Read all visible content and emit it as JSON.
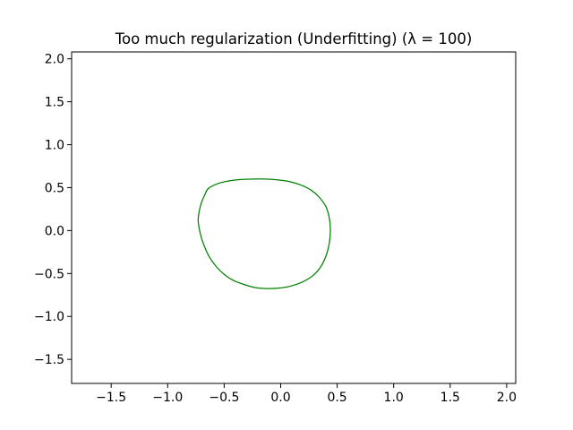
{
  "chart_data": {
    "type": "line",
    "title": "Too much regularization (Underfitting) (λ = 100)",
    "xlabel": "",
    "ylabel": "",
    "xlim": [
      -1.85,
      2.08
    ],
    "ylim": [
      -1.78,
      2.08
    ],
    "grid": false,
    "xticks": [
      -1.5,
      -1.0,
      -0.5,
      0.0,
      0.5,
      1.0,
      1.5,
      2.0
    ],
    "yticks": [
      -1.5,
      -1.0,
      -0.5,
      0.0,
      0.5,
      1.0,
      1.5,
      2.0
    ],
    "xtick_labels": [
      "−1.5",
      "−1.0",
      "−0.5",
      "0.0",
      "0.5",
      "1.0",
      "1.5",
      "2.0"
    ],
    "ytick_labels": [
      "−1.5",
      "−1.0",
      "−0.5",
      "0.0",
      "0.5",
      "1.0",
      "1.5",
      "2.0"
    ],
    "series": [
      {
        "color": "#008000",
        "x": [
          -0.64,
          -0.55,
          -0.45,
          -0.35,
          -0.24,
          -0.13,
          -0.02,
          0.08,
          0.18,
          0.27,
          0.34,
          0.4,
          0.43,
          0.44,
          0.43,
          0.4,
          0.35,
          0.28,
          0.19,
          0.08,
          -0.02,
          -0.12,
          -0.22,
          -0.32,
          -0.42,
          -0.5,
          -0.57,
          -0.63,
          -0.67,
          -0.7,
          -0.72,
          -0.73,
          -0.72,
          -0.7,
          -0.67,
          -0.64
        ],
        "y": [
          0.49,
          0.55,
          0.58,
          0.595,
          0.6,
          0.6,
          0.59,
          0.57,
          0.53,
          0.47,
          0.39,
          0.28,
          0.15,
          0.0,
          -0.15,
          -0.3,
          -0.43,
          -0.53,
          -0.6,
          -0.65,
          -0.67,
          -0.675,
          -0.665,
          -0.63,
          -0.58,
          -0.51,
          -0.42,
          -0.31,
          -0.2,
          -0.09,
          0.02,
          0.12,
          0.23,
          0.33,
          0.42,
          0.49
        ]
      }
    ]
  }
}
